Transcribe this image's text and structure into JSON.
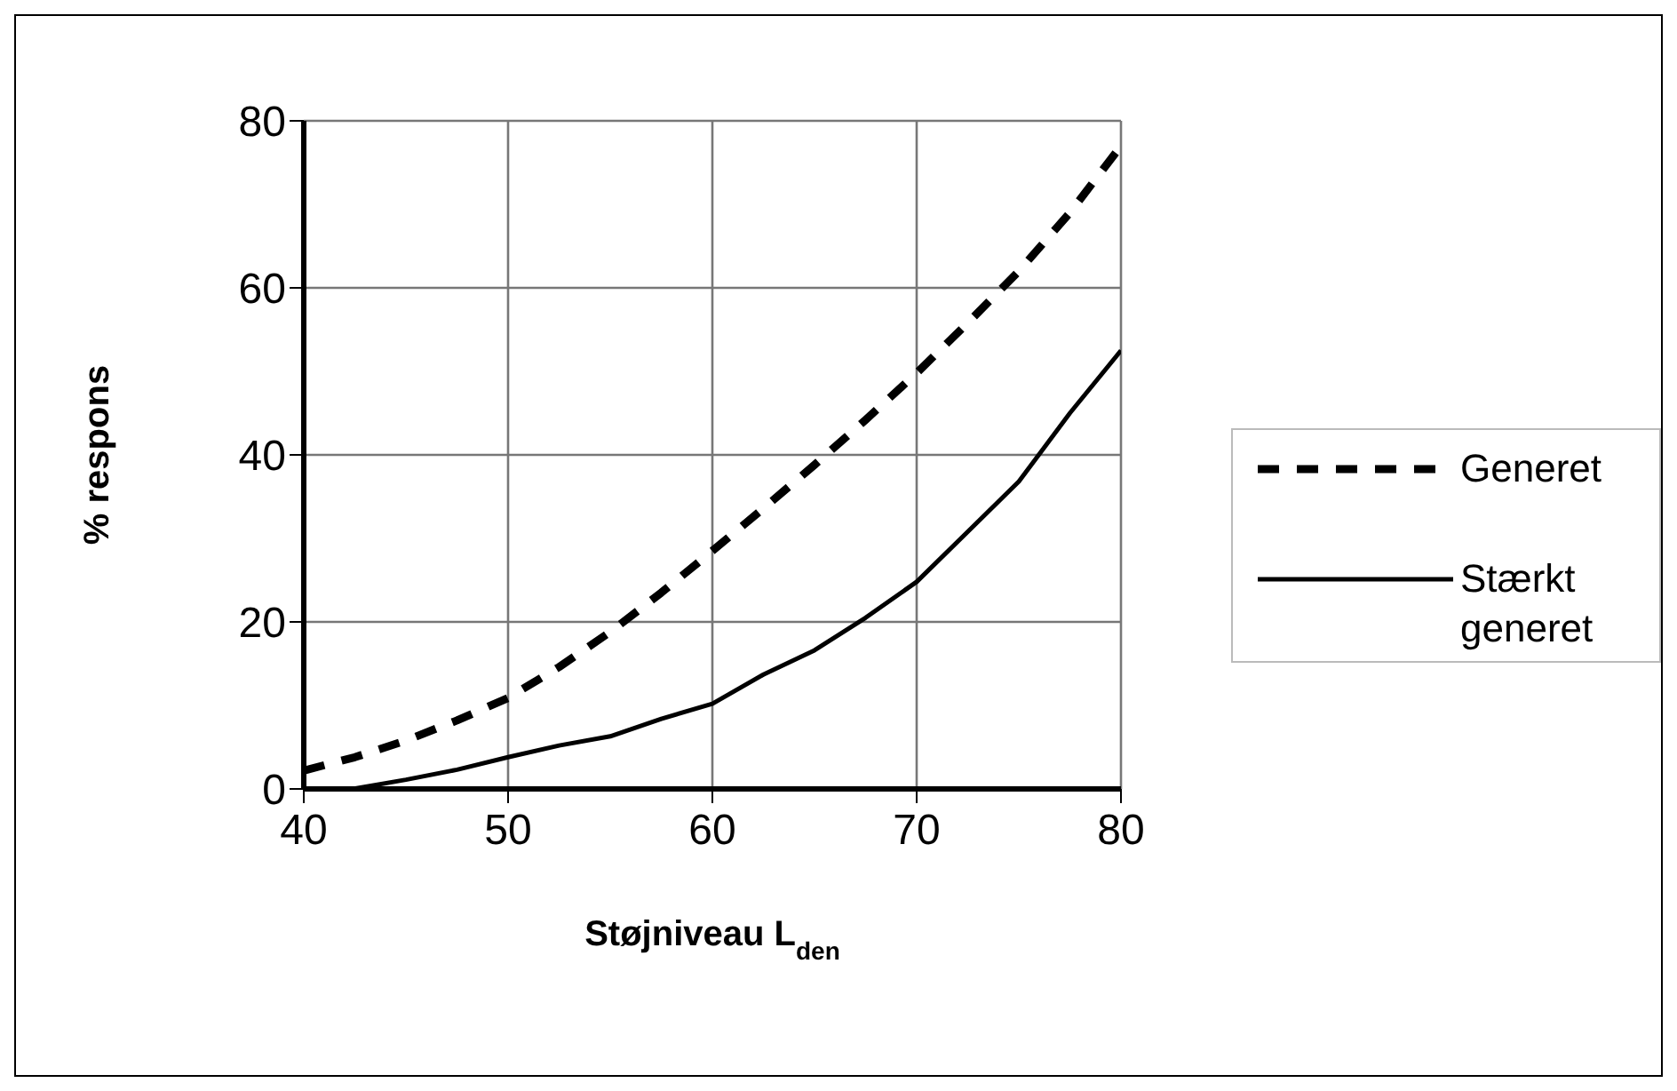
{
  "chart_data": {
    "type": "line",
    "xlabel": "Støjniveau L$_{den}$",
    "ylabel": "% respons",
    "xlim": [
      40,
      80
    ],
    "xticks": [
      40,
      50,
      60,
      70,
      80
    ],
    "ylim": [
      0,
      80
    ],
    "yticks": [
      0,
      20,
      40,
      60,
      80
    ],
    "grid": true,
    "legend": "right",
    "marker": "none",
    "series": [
      {
        "name": "Generet",
        "color": "#000000",
        "line_style": "dashed",
        "x": [
          40,
          42.5,
          45,
          47.5,
          50,
          52.5,
          55,
          57.5,
          60,
          62.5,
          65,
          67.5,
          70,
          72.5,
          75,
          77.5,
          80
        ],
        "values": [
          2.2,
          3.8,
          5.8,
          8.2,
          10.9,
          14.6,
          18.8,
          23.5,
          28.5,
          33.6,
          38.8,
          44.2,
          49.8,
          55.8,
          62,
          69,
          77
        ]
      },
      {
        "name": "Stærkt generet",
        "color": "#000000",
        "line_style": "solid",
        "x": [
          42.4,
          45,
          47.5,
          50,
          52.5,
          55,
          57.5,
          60,
          62.5,
          65,
          67.5,
          70,
          72.5,
          75,
          77.5,
          80
        ],
        "values": [
          0,
          1.1,
          2.3,
          3.8,
          5.2,
          6.3,
          8.4,
          10.2,
          13.7,
          16.6,
          20.5,
          24.8,
          30.8,
          36.8,
          45,
          52.5
        ]
      }
    ]
  }
}
